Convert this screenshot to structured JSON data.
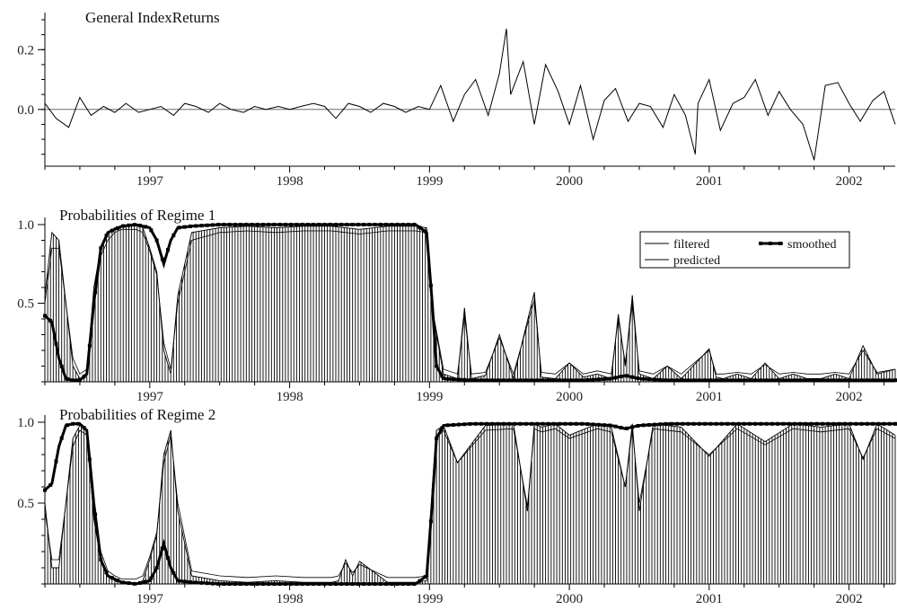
{
  "chart_data": [
    {
      "type": "line",
      "title": "General IndexReturns",
      "x_range": [
        1996.25,
        2002.33
      ],
      "ylim": [
        -0.19,
        0.3
      ],
      "y_ticks": [
        0.0,
        0.2
      ],
      "y_tick_labels": [
        "0.0",
        "0.2"
      ],
      "x_ticks": [
        1997,
        1998,
        1999,
        2000,
        2001,
        2002
      ],
      "x_tick_labels": [
        "1997",
        "1998",
        "1999",
        "2000",
        "2001",
        "2002"
      ],
      "reference_line": 0.0,
      "grid": false,
      "series": [
        {
          "x": [
            1996.25,
            1996.33,
            1996.42,
            1996.5,
            1996.58,
            1996.67,
            1996.75,
            1996.83,
            1996.92,
            1997.0,
            1997.08,
            1997.17,
            1997.25,
            1997.33,
            1997.42,
            1997.5,
            1997.58,
            1997.67,
            1997.75,
            1997.83,
            1997.92,
            1998.0,
            1998.08,
            1998.17,
            1998.25,
            1998.33,
            1998.42,
            1998.5,
            1998.58,
            1998.67,
            1998.75,
            1998.83,
            1998.92,
            1999.0,
            1999.08,
            1999.17,
            1999.25,
            1999.33,
            1999.42,
            1999.5,
            1999.55,
            1999.58,
            1999.67,
            1999.75,
            1999.83,
            1999.92,
            2000.0,
            2000.08,
            2000.17,
            2000.25,
            2000.33,
            2000.42,
            2000.5,
            2000.58,
            2000.67,
            2000.75,
            2000.83,
            2000.9,
            2000.92,
            2001.0,
            2001.08,
            2001.17,
            2001.25,
            2001.33,
            2001.42,
            2001.5,
            2001.58,
            2001.67,
            2001.75,
            2001.83,
            2001.92,
            2002.0,
            2002.08,
            2002.17,
            2002.25,
            2002.33
          ],
          "y": [
            0.02,
            -0.03,
            -0.06,
            0.04,
            -0.02,
            0.01,
            -0.01,
            0.02,
            -0.01,
            0.0,
            0.01,
            -0.02,
            0.02,
            0.01,
            -0.01,
            0.02,
            0.0,
            -0.01,
            0.01,
            0.0,
            0.01,
            0.0,
            0.01,
            0.02,
            0.01,
            -0.03,
            0.02,
            0.01,
            -0.01,
            0.02,
            0.01,
            -0.01,
            0.01,
            0.0,
            0.08,
            -0.04,
            0.05,
            0.1,
            -0.02,
            0.12,
            0.27,
            0.05,
            0.16,
            -0.05,
            0.15,
            0.06,
            -0.05,
            0.08,
            -0.1,
            0.03,
            0.07,
            -0.04,
            0.02,
            0.01,
            -0.06,
            0.05,
            -0.02,
            -0.15,
            0.02,
            0.1,
            -0.07,
            0.02,
            0.04,
            0.1,
            -0.02,
            0.06,
            0.0,
            -0.05,
            -0.17,
            0.08,
            0.09,
            0.02,
            -0.04,
            0.03,
            0.06,
            -0.05
          ]
        }
      ]
    },
    {
      "type": "line",
      "title": "Probabilities of Regime 1",
      "x_range": [
        1996.25,
        2002.33
      ],
      "ylim": [
        0,
        1.0
      ],
      "y_ticks": [
        0.5,
        1.0
      ],
      "y_tick_labels": [
        "0.5",
        "1.0"
      ],
      "x_ticks": [
        1997,
        1998,
        1999,
        2000,
        2001,
        2002
      ],
      "x_tick_labels": [
        "1997",
        "1998",
        "1999",
        "2000",
        "2001",
        "2002"
      ],
      "grid": false,
      "legend_position": "top-right",
      "legend": [
        "filtered",
        "smoothed",
        "predicted"
      ],
      "series": [
        {
          "name": "filtered",
          "x": [
            1996.25,
            1996.3,
            1996.35,
            1996.4,
            1996.45,
            1996.5,
            1996.55,
            1996.6,
            1996.65,
            1996.7,
            1996.75,
            1996.8,
            1996.85,
            1996.9,
            1996.95,
            1997.0,
            1997.05,
            1997.1,
            1997.15,
            1997.2,
            1997.3,
            1997.5,
            1997.7,
            1997.9,
            1998.1,
            1998.3,
            1998.5,
            1998.7,
            1998.9,
            1998.98,
            1999.03,
            1999.1,
            1999.2,
            1999.25,
            1999.3,
            1999.4,
            1999.5,
            1999.6,
            1999.75,
            1999.8,
            1999.9,
            2000.0,
            2000.1,
            2000.2,
            2000.3,
            2000.35,
            2000.4,
            2000.45,
            2000.5,
            2000.6,
            2000.7,
            2000.8,
            2001.0,
            2001.05,
            2001.1,
            2001.2,
            2001.3,
            2001.4,
            2001.5,
            2001.6,
            2001.7,
            2001.8,
            2001.9,
            2002.0,
            2002.1,
            2002.2,
            2002.33
          ],
          "y": [
            0.55,
            0.95,
            0.9,
            0.5,
            0.1,
            0.02,
            0.05,
            0.6,
            0.85,
            0.95,
            0.98,
            0.99,
            0.99,
            1.0,
            0.98,
            0.85,
            0.7,
            0.2,
            0.05,
            0.55,
            0.95,
            0.98,
            0.99,
            0.98,
            0.99,
            0.99,
            0.97,
            0.99,
            0.99,
            0.98,
            0.4,
            0.05,
            0.02,
            0.47,
            0.02,
            0.04,
            0.3,
            0.02,
            0.57,
            0.03,
            0.02,
            0.12,
            0.03,
            0.05,
            0.02,
            0.43,
            0.1,
            0.55,
            0.05,
            0.02,
            0.1,
            0.02,
            0.21,
            0.03,
            0.02,
            0.05,
            0.02,
            0.12,
            0.02,
            0.05,
            0.02,
            0.02,
            0.05,
            0.02,
            0.23,
            0.05,
            0.08
          ]
        },
        {
          "name": "smoothed",
          "x": [
            1996.25,
            1996.3,
            1996.35,
            1996.4,
            1996.45,
            1996.5,
            1996.55,
            1996.6,
            1996.65,
            1996.7,
            1996.8,
            1996.9,
            1997.0,
            1997.05,
            1997.1,
            1997.15,
            1997.2,
            1997.3,
            1997.5,
            1997.7,
            1997.9,
            1998.1,
            1998.3,
            1998.5,
            1998.7,
            1998.9,
            1998.98,
            1999.02,
            1999.05,
            1999.1,
            1999.3,
            1999.5,
            1999.7,
            1999.9,
            2000.1,
            2000.3,
            2000.4,
            2000.5,
            2000.7,
            2000.9,
            2001.1,
            2001.3,
            2001.5,
            2001.7,
            2001.9,
            2002.1,
            2002.33
          ],
          "y": [
            0.42,
            0.38,
            0.15,
            0.02,
            0.01,
            0.01,
            0.05,
            0.5,
            0.85,
            0.95,
            0.99,
            1.0,
            0.98,
            0.9,
            0.75,
            0.9,
            0.98,
            0.99,
            1.0,
            1.0,
            1.0,
            1.0,
            1.0,
            1.0,
            1.0,
            1.0,
            0.95,
            0.5,
            0.1,
            0.02,
            0.01,
            0.01,
            0.01,
            0.01,
            0.01,
            0.02,
            0.04,
            0.02,
            0.01,
            0.01,
            0.01,
            0.01,
            0.01,
            0.01,
            0.01,
            0.01,
            0.01
          ]
        },
        {
          "name": "predicted",
          "x": [
            1996.25,
            1996.3,
            1996.35,
            1996.4,
            1996.45,
            1996.5,
            1996.55,
            1996.6,
            1996.65,
            1996.7,
            1996.75,
            1996.8,
            1996.85,
            1996.9,
            1996.95,
            1997.0,
            1997.05,
            1997.1,
            1997.15,
            1997.2,
            1997.3,
            1997.5,
            1997.7,
            1997.9,
            1998.1,
            1998.3,
            1998.5,
            1998.7,
            1998.9,
            1998.98,
            1999.03,
            1999.1,
            1999.2,
            1999.25,
            1999.3,
            1999.4,
            1999.5,
            1999.6,
            1999.75,
            1999.8,
            1999.9,
            2000.0,
            2000.1,
            2000.2,
            2000.3,
            2000.35,
            2000.4,
            2000.45,
            2000.5,
            2000.6,
            2000.7,
            2000.8,
            2001.0,
            2001.05,
            2001.1,
            2001.2,
            2001.3,
            2001.4,
            2001.5,
            2001.6,
            2001.7,
            2001.8,
            2001.9,
            2002.0,
            2002.1,
            2002.2,
            2002.33
          ],
          "y": [
            0.5,
            0.85,
            0.85,
            0.5,
            0.15,
            0.05,
            0.08,
            0.5,
            0.8,
            0.9,
            0.95,
            0.97,
            0.97,
            0.97,
            0.95,
            0.83,
            0.68,
            0.25,
            0.08,
            0.5,
            0.9,
            0.95,
            0.96,
            0.95,
            0.96,
            0.96,
            0.94,
            0.96,
            0.96,
            0.95,
            0.42,
            0.08,
            0.05,
            0.42,
            0.05,
            0.06,
            0.28,
            0.05,
            0.52,
            0.06,
            0.05,
            0.12,
            0.05,
            0.07,
            0.05,
            0.4,
            0.12,
            0.5,
            0.07,
            0.05,
            0.1,
            0.05,
            0.2,
            0.05,
            0.05,
            0.06,
            0.05,
            0.11,
            0.05,
            0.06,
            0.05,
            0.05,
            0.06,
            0.05,
            0.2,
            0.06,
            0.08
          ]
        }
      ]
    },
    {
      "type": "line",
      "title": "Probabilities of Regime 2",
      "x_range": [
        1996.25,
        2002.33
      ],
      "ylim": [
        0,
        1.0
      ],
      "y_ticks": [
        0.5,
        1.0
      ],
      "y_tick_labels": [
        "0.5",
        "1.0"
      ],
      "x_ticks": [
        1997,
        1998,
        1999,
        2000,
        2001,
        2002
      ],
      "x_tick_labels": [
        "1997",
        "1998",
        "1999",
        "2000",
        "2001",
        "2002"
      ],
      "grid": false,
      "series": [
        {
          "name": "filtered",
          "x": [
            1996.25,
            1996.3,
            1996.35,
            1996.4,
            1996.45,
            1996.5,
            1996.55,
            1996.6,
            1996.65,
            1996.7,
            1996.75,
            1996.8,
            1996.85,
            1996.9,
            1996.95,
            1997.0,
            1997.05,
            1997.1,
            1997.15,
            1997.2,
            1997.3,
            1997.5,
            1997.7,
            1997.9,
            1998.1,
            1998.3,
            1998.35,
            1998.4,
            1998.45,
            1998.5,
            1998.7,
            1998.9,
            1998.98,
            1999.02,
            1999.05,
            1999.1,
            1999.2,
            1999.4,
            1999.6,
            1999.7,
            1999.75,
            1999.8,
            1999.9,
            2000.0,
            2000.2,
            2000.3,
            2000.4,
            2000.45,
            2000.5,
            2000.6,
            2000.8,
            2001.0,
            2001.2,
            2001.4,
            2001.6,
            2001.8,
            2002.0,
            2002.1,
            2002.2,
            2002.33
          ],
          "y": [
            0.5,
            0.1,
            0.1,
            0.5,
            0.9,
            0.98,
            0.95,
            0.4,
            0.15,
            0.05,
            0.02,
            0.01,
            0.01,
            0.0,
            0.02,
            0.15,
            0.3,
            0.8,
            0.95,
            0.45,
            0.05,
            0.02,
            0.01,
            0.02,
            0.01,
            0.01,
            0.02,
            0.15,
            0.05,
            0.14,
            0.01,
            0.01,
            0.02,
            0.6,
            0.95,
            0.98,
            0.75,
            0.98,
            0.99,
            0.45,
            0.99,
            0.97,
            0.99,
            0.92,
            0.99,
            0.97,
            0.6,
            0.99,
            0.45,
            0.99,
            0.97,
            0.79,
            0.99,
            0.88,
            0.99,
            0.97,
            0.99,
            0.77,
            0.99,
            0.92
          ]
        },
        {
          "name": "smoothed",
          "x": [
            1996.25,
            1996.3,
            1996.35,
            1996.4,
            1996.45,
            1996.5,
            1996.55,
            1996.6,
            1996.65,
            1996.7,
            1996.8,
            1996.9,
            1997.0,
            1997.05,
            1997.1,
            1997.15,
            1997.2,
            1997.3,
            1997.5,
            1997.7,
            1997.9,
            1998.1,
            1998.3,
            1998.5,
            1998.7,
            1998.9,
            1998.98,
            1999.02,
            1999.05,
            1999.1,
            1999.3,
            1999.5,
            1999.7,
            1999.9,
            2000.1,
            2000.3,
            2000.4,
            2000.5,
            2000.7,
            2000.9,
            2001.1,
            2001.3,
            2001.5,
            2001.7,
            2001.9,
            2002.1,
            2002.33
          ],
          "y": [
            0.58,
            0.62,
            0.85,
            0.98,
            0.99,
            0.99,
            0.95,
            0.5,
            0.15,
            0.05,
            0.01,
            0.0,
            0.02,
            0.1,
            0.25,
            0.1,
            0.02,
            0.01,
            0.0,
            0.0,
            0.0,
            0.0,
            0.0,
            0.0,
            0.0,
            0.0,
            0.05,
            0.5,
            0.9,
            0.98,
            0.99,
            0.99,
            0.99,
            0.99,
            0.99,
            0.98,
            0.96,
            0.98,
            0.99,
            0.99,
            0.99,
            0.99,
            0.99,
            0.99,
            0.99,
            0.99,
            0.99
          ]
        },
        {
          "name": "predicted",
          "x": [
            1996.25,
            1996.3,
            1996.35,
            1996.4,
            1996.45,
            1996.5,
            1996.55,
            1996.6,
            1996.65,
            1996.7,
            1996.75,
            1996.8,
            1996.85,
            1996.9,
            1996.95,
            1997.0,
            1997.05,
            1997.1,
            1997.15,
            1997.2,
            1997.3,
            1997.5,
            1997.7,
            1997.9,
            1998.1,
            1998.3,
            1998.35,
            1998.4,
            1998.45,
            1998.5,
            1998.7,
            1998.9,
            1998.98,
            1999.02,
            1999.05,
            1999.1,
            1999.2,
            1999.4,
            1999.6,
            1999.7,
            1999.75,
            1999.8,
            1999.9,
            2000.0,
            2000.2,
            2000.3,
            2000.4,
            2000.45,
            2000.5,
            2000.6,
            2000.8,
            2001.0,
            2001.2,
            2001.4,
            2001.6,
            2001.8,
            2002.0,
            2002.1,
            2002.2,
            2002.33
          ],
          "y": [
            0.45,
            0.15,
            0.15,
            0.5,
            0.85,
            0.95,
            0.92,
            0.42,
            0.2,
            0.08,
            0.05,
            0.03,
            0.03,
            0.03,
            0.05,
            0.17,
            0.32,
            0.75,
            0.92,
            0.5,
            0.08,
            0.05,
            0.04,
            0.05,
            0.04,
            0.04,
            0.05,
            0.13,
            0.07,
            0.12,
            0.04,
            0.04,
            0.05,
            0.55,
            0.9,
            0.95,
            0.75,
            0.95,
            0.96,
            0.48,
            0.96,
            0.94,
            0.96,
            0.9,
            0.96,
            0.94,
            0.6,
            0.96,
            0.5,
            0.96,
            0.94,
            0.8,
            0.96,
            0.86,
            0.96,
            0.94,
            0.96,
            0.78,
            0.96,
            0.9
          ]
        }
      ]
    }
  ]
}
